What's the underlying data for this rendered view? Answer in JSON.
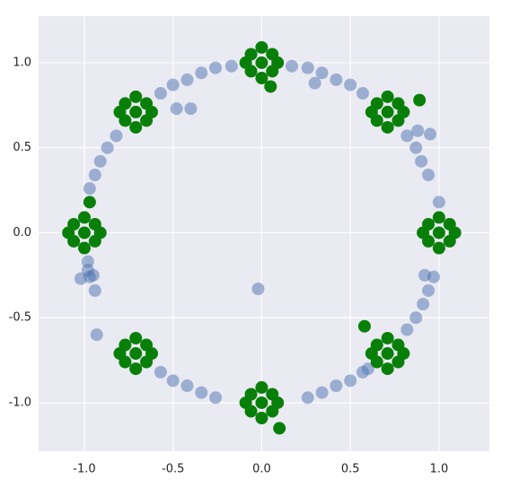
{
  "chart_data": {
    "type": "scatter",
    "xlim": [
      -1.258,
      1.284
    ],
    "ylim": [
      -1.285,
      1.274
    ],
    "xticks": [
      {
        "value": -1,
        "label": "-1.0"
      },
      {
        "value": -0.5,
        "label": "-0.5"
      },
      {
        "value": 0,
        "label": "0.0"
      },
      {
        "value": 0.5,
        "label": "0.5"
      },
      {
        "value": 1,
        "label": "1.0"
      }
    ],
    "yticks": [
      {
        "value": -1,
        "label": "-1.0"
      },
      {
        "value": -0.5,
        "label": "-0.5"
      },
      {
        "value": 0,
        "label": "0.0"
      },
      {
        "value": 0.5,
        "label": "0.5"
      },
      {
        "value": 1,
        "label": "1.0"
      }
    ],
    "grid": true,
    "series": [
      {
        "color": "#4c72b0",
        "alpha": 0.5,
        "x": [
          1.0,
          0.94,
          0.9,
          0.87,
          0.82,
          0.57,
          0.5,
          0.42,
          0.34,
          0.26,
          0.17,
          -0.17,
          -0.26,
          -0.34,
          -0.42,
          -0.5,
          -0.57,
          -0.82,
          -0.87,
          -0.91,
          -0.94,
          -0.97,
          -0.98,
          -0.97,
          -0.94,
          -0.93,
          -0.57,
          -0.5,
          -0.42,
          -0.34,
          -0.26,
          0.26,
          0.34,
          0.42,
          0.5,
          0.57,
          0.82,
          0.87,
          0.91,
          0.94,
          0.97,
          -0.02,
          -0.98,
          -1.02,
          0.88,
          0.95,
          -0.48,
          -0.4,
          0.3,
          0.6,
          0.92,
          -0.95
        ],
        "y": [
          0.18,
          0.34,
          0.42,
          0.5,
          0.57,
          0.82,
          0.87,
          0.9,
          0.94,
          0.97,
          0.98,
          0.98,
          0.97,
          0.94,
          0.9,
          0.87,
          0.82,
          0.57,
          0.5,
          0.42,
          0.34,
          0.26,
          -0.17,
          -0.26,
          -0.34,
          -0.6,
          -0.82,
          -0.87,
          -0.9,
          -0.94,
          -0.97,
          -0.97,
          -0.94,
          -0.9,
          -0.87,
          -0.82,
          -0.57,
          -0.5,
          -0.42,
          -0.34,
          -0.26,
          -0.33,
          -0.22,
          -0.27,
          0.6,
          0.58,
          0.73,
          0.73,
          0.88,
          -0.8,
          -0.25,
          -0.25
        ]
      },
      {
        "color": "#087f08",
        "alpha": 1,
        "x": [
          1.0,
          1.06,
          0.94,
          1.06,
          0.94,
          1.09,
          0.91,
          1.0,
          1.0,
          0.71,
          0.77,
          0.65,
          0.77,
          0.65,
          0.8,
          0.62,
          0.71,
          0.71,
          0,
          0.06,
          -0.06,
          0.06,
          -0.06,
          0.09,
          -0.09,
          0,
          0,
          -0.71,
          -0.65,
          -0.77,
          -0.65,
          -0.77,
          -0.62,
          -0.8,
          -0.71,
          -0.71,
          -1,
          -0.94,
          -1.06,
          -0.94,
          -1.06,
          -0.91,
          -1.09,
          -1,
          -1,
          -0.71,
          -0.65,
          -0.77,
          -0.65,
          -0.77,
          -0.62,
          -0.8,
          -0.71,
          -0.71,
          0,
          0.06,
          -0.06,
          0.06,
          -0.06,
          0.09,
          -0.09,
          0,
          0,
          0.71,
          0.77,
          0.65,
          0.77,
          0.65,
          0.8,
          0.62,
          0.71,
          0.71,
          0.89,
          -0.97,
          0.58,
          0.1,
          0.05
        ],
        "y": [
          0,
          0.05,
          0.05,
          -0.05,
          -0.05,
          0,
          0,
          0.09,
          -0.09,
          0.71,
          0.76,
          0.76,
          0.66,
          0.66,
          0.71,
          0.71,
          0.8,
          0.62,
          1,
          1.05,
          1.05,
          0.95,
          0.95,
          1,
          1,
          1.09,
          0.91,
          0.71,
          0.76,
          0.76,
          0.66,
          0.66,
          0.71,
          0.71,
          0.8,
          0.62,
          0,
          0.05,
          0.05,
          -0.05,
          -0.05,
          0,
          0,
          0.09,
          -0.09,
          -0.71,
          -0.66,
          -0.66,
          -0.76,
          -0.76,
          -0.71,
          -0.71,
          -0.62,
          -0.8,
          -1,
          -0.95,
          -0.95,
          -1.05,
          -1.05,
          -1,
          -1,
          -0.91,
          -1.09,
          -0.71,
          -0.66,
          -0.66,
          -0.76,
          -0.76,
          -0.71,
          -0.71,
          -0.62,
          -0.8,
          0.78,
          0.18,
          -0.55,
          -1.15,
          0.86
        ]
      }
    ]
  }
}
